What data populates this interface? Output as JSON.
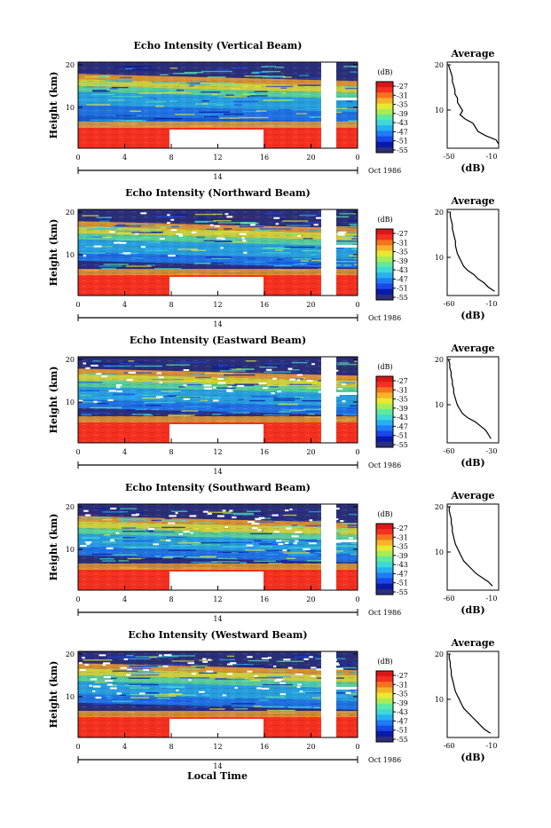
{
  "common": {
    "ylabel": "Height (km)",
    "y_ticks": [
      "20",
      "10"
    ],
    "x_ticks": [
      "0",
      "4",
      "8",
      "12",
      "16",
      "20",
      "0"
    ],
    "date_day": "14",
    "date_month": "Oct 1986",
    "colorbar_unit": "(dB)",
    "colorbar_ticks": [
      "-27",
      "-31",
      "-35",
      "-39",
      "-43",
      "-47",
      "-51",
      "-55"
    ],
    "colorbar_colors": [
      "#2b2f7a",
      "#0a1aa8",
      "#1a48e8",
      "#1e7cf5",
      "#27b0f0",
      "#3dd9d9",
      "#5fe8a0",
      "#a8ec55",
      "#e8e832",
      "#f5b32a",
      "#f5731e",
      "#f53020",
      "#d81818"
    ],
    "avg_title": "Average",
    "avg_xlabel": "(dB)",
    "avg_y_ticks": [
      "20",
      "10"
    ],
    "xlabel": "Local Time"
  },
  "chart_data": [
    {
      "type": "heatmap",
      "title": "Echo Intensity (Vertical Beam)",
      "avg_x_ticks": [
        "-50",
        "-10"
      ],
      "avg_xlim": [
        -50,
        -10
      ],
      "avg_profile": [
        [
          -8,
          1
        ],
        [
          -12,
          2
        ],
        [
          -20,
          3
        ],
        [
          -26,
          4
        ],
        [
          -28,
          5
        ],
        [
          -30,
          6
        ],
        [
          -36,
          7
        ],
        [
          -40,
          8
        ],
        [
          -38,
          9
        ],
        [
          -40,
          10
        ],
        [
          -42,
          11
        ],
        [
          -42,
          12
        ],
        [
          -44,
          13
        ],
        [
          -44,
          14
        ],
        [
          -45,
          15
        ],
        [
          -46,
          16
        ],
        [
          -46,
          17
        ],
        [
          -47,
          18
        ],
        [
          -48,
          19
        ],
        [
          -49,
          20
        ]
      ]
    },
    {
      "type": "heatmap",
      "title": "Echo Intensity (Northward Beam)",
      "avg_x_ticks": [
        "-60",
        "-10"
      ],
      "avg_xlim": [
        -60,
        -10
      ],
      "avg_profile": [
        [
          -14,
          1
        ],
        [
          -20,
          2
        ],
        [
          -24,
          3
        ],
        [
          -30,
          4
        ],
        [
          -34,
          5
        ],
        [
          -40,
          6
        ],
        [
          -44,
          7
        ],
        [
          -46,
          8
        ],
        [
          -48,
          9
        ],
        [
          -50,
          10
        ],
        [
          -51,
          11
        ],
        [
          -52,
          12
        ],
        [
          -52,
          13
        ],
        [
          -53,
          14
        ],
        [
          -54,
          15
        ],
        [
          -55,
          16
        ],
        [
          -55,
          17
        ],
        [
          -56,
          18
        ],
        [
          -57,
          19
        ],
        [
          -57,
          20
        ]
      ]
    },
    {
      "type": "heatmap",
      "title": "Echo Intensity (Eastward Beam)",
      "avg_x_ticks": [
        "-60",
        "-30"
      ],
      "avg_xlim": [
        -60,
        -20
      ],
      "avg_profile": [
        [
          -26,
          1
        ],
        [
          -28,
          2
        ],
        [
          -30,
          3
        ],
        [
          -34,
          4
        ],
        [
          -38,
          5
        ],
        [
          -44,
          6
        ],
        [
          -48,
          7
        ],
        [
          -50,
          8
        ],
        [
          -52,
          9
        ],
        [
          -53,
          10
        ],
        [
          -54,
          11
        ],
        [
          -55,
          12
        ],
        [
          -55,
          13
        ],
        [
          -56,
          14
        ],
        [
          -56,
          15
        ],
        [
          -57,
          16
        ],
        [
          -57,
          17
        ],
        [
          -58,
          18
        ],
        [
          -58,
          19
        ],
        [
          -59,
          20
        ]
      ]
    },
    {
      "type": "heatmap",
      "title": "Echo Intensity (Southward Beam)",
      "avg_x_ticks": [
        "-60",
        "-10"
      ],
      "avg_xlim": [
        -60,
        -10
      ],
      "avg_profile": [
        [
          -16,
          1
        ],
        [
          -20,
          2
        ],
        [
          -26,
          3
        ],
        [
          -32,
          4
        ],
        [
          -36,
          5
        ],
        [
          -40,
          6
        ],
        [
          -44,
          7
        ],
        [
          -46,
          8
        ],
        [
          -48,
          9
        ],
        [
          -50,
          10
        ],
        [
          -52,
          11
        ],
        [
          -53,
          12
        ],
        [
          -54,
          13
        ],
        [
          -55,
          14
        ],
        [
          -55,
          15
        ],
        [
          -56,
          16
        ],
        [
          -56,
          17
        ],
        [
          -57,
          18
        ],
        [
          -58,
          19
        ],
        [
          -58,
          20
        ]
      ]
    },
    {
      "type": "heatmap",
      "title": "Echo Intensity (Westward Beam)",
      "avg_x_ticks": [
        "-60",
        "-10"
      ],
      "avg_xlim": [
        -60,
        -10
      ],
      "avg_profile": [
        [
          -18,
          1
        ],
        [
          -24,
          2
        ],
        [
          -28,
          3
        ],
        [
          -32,
          4
        ],
        [
          -36,
          5
        ],
        [
          -40,
          6
        ],
        [
          -44,
          7
        ],
        [
          -46,
          8
        ],
        [
          -48,
          9
        ],
        [
          -50,
          10
        ],
        [
          -52,
          11
        ],
        [
          -53,
          12
        ],
        [
          -54,
          13
        ],
        [
          -55,
          14
        ],
        [
          -56,
          15
        ],
        [
          -56,
          16
        ],
        [
          -57,
          17
        ],
        [
          -57,
          18
        ],
        [
          -58,
          19
        ],
        [
          -58,
          20
        ]
      ]
    }
  ]
}
